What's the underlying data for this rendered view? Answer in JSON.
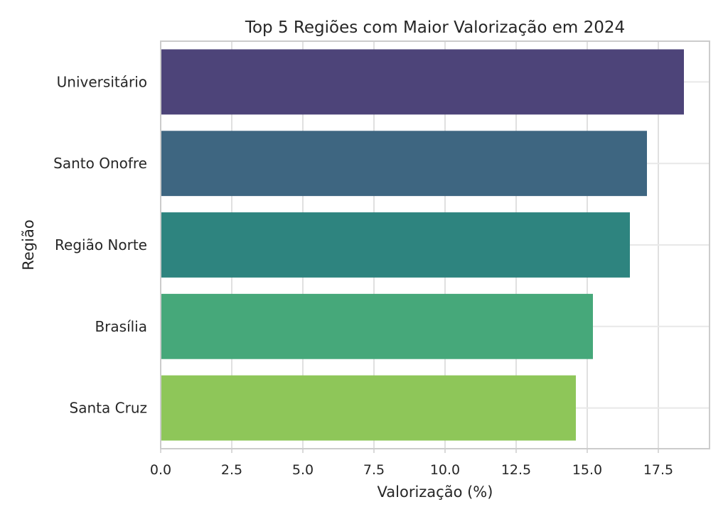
{
  "chart_data": {
    "type": "bar",
    "orientation": "horizontal",
    "title": "Top 5 Regiões com Maior Valorização em 2024",
    "xlabel": "Valorização (%)",
    "ylabel": "Região",
    "categories": [
      "Universitário",
      "Santo Onofre",
      "Região Norte",
      "Brasília",
      "Santa Cruz"
    ],
    "values": [
      18.4,
      17.1,
      16.5,
      15.2,
      14.6
    ],
    "colors": [
      "#4d4479",
      "#3e6681",
      "#2e847f",
      "#46a87a",
      "#8ec659"
    ],
    "xlim": [
      0,
      19.3
    ],
    "xticks": [
      "0.0",
      "2.5",
      "5.0",
      "7.5",
      "10.0",
      "12.5",
      "15.0",
      "17.5"
    ],
    "grid": true
  }
}
